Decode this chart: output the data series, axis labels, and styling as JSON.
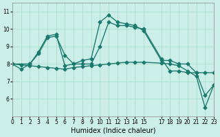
{
  "title": "",
  "xlabel": "Humidex (Indice chaleur)",
  "ylabel": "",
  "background_color": "#cceee8",
  "grid_color": "#aaddcc",
  "line_color": "#1a7a6e",
  "xlim": [
    0,
    23
  ],
  "ylim": [
    5.0,
    11.5
  ],
  "yticks": [
    6,
    7,
    8,
    9,
    10,
    11
  ],
  "xticks": [
    0,
    1,
    2,
    3,
    4,
    5,
    6,
    7,
    8,
    9,
    10,
    11,
    12,
    13,
    14,
    15,
    17,
    18,
    19,
    20,
    21,
    22,
    23
  ],
  "line1_x": [
    0,
    1,
    2,
    3,
    4,
    5,
    6,
    7,
    8,
    9,
    10,
    11,
    12,
    13,
    14,
    15,
    17,
    18,
    19,
    20,
    21,
    22,
    23
  ],
  "line1_y": [
    8.0,
    7.7,
    8.0,
    8.7,
    9.6,
    9.7,
    7.9,
    8.0,
    8.2,
    8.3,
    10.4,
    10.8,
    10.4,
    10.3,
    10.2,
    9.9,
    8.2,
    8.2,
    8.0,
    8.0,
    7.5,
    6.2,
    6.8
  ],
  "line2_x": [
    0,
    2,
    3,
    4,
    5,
    6,
    7,
    8,
    9,
    10,
    11,
    12,
    13,
    14,
    15,
    17,
    18,
    19,
    20,
    21,
    22,
    23
  ],
  "line2_y": [
    8.0,
    8.0,
    8.6,
    9.5,
    9.6,
    8.5,
    8.0,
    8.0,
    8.0,
    9.0,
    10.4,
    10.2,
    10.2,
    10.1,
    10.0,
    8.3,
    7.6,
    7.6,
    7.5,
    7.5,
    7.5,
    7.5
  ],
  "line3_x": [
    0,
    1,
    2,
    3,
    4,
    5,
    6,
    7,
    8,
    9,
    10,
    11,
    12,
    13,
    14,
    15,
    17,
    18,
    19,
    20,
    21,
    22,
    23
  ],
  "line3_y": [
    8.0,
    7.95,
    7.9,
    7.85,
    7.8,
    7.75,
    7.7,
    7.8,
    7.85,
    7.9,
    7.95,
    8.0,
    8.05,
    8.1,
    8.1,
    8.1,
    8.05,
    8.0,
    7.9,
    7.6,
    7.3,
    5.5,
    6.8
  ]
}
